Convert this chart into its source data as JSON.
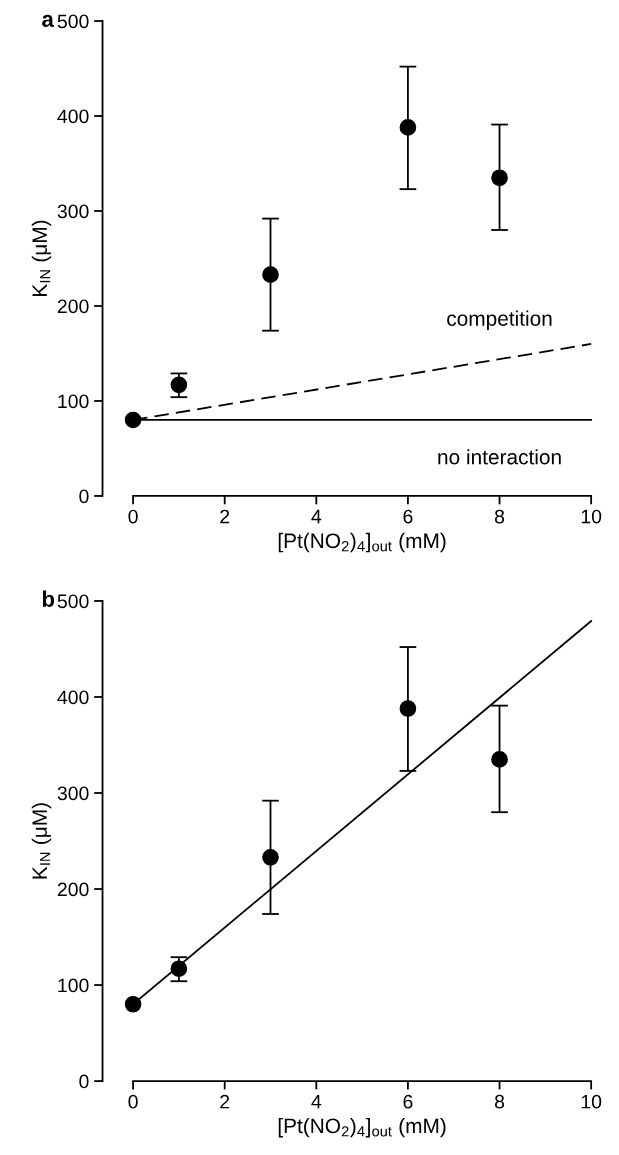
{
  "chart_data": [
    {
      "type": "scatter",
      "title": "a",
      "xlabel": "[Pt(NO$_{2}$)$_{4}$]$_{out}$ (mM)",
      "ylabel": "K$_{IN}$ (μM)",
      "xlim": [
        0,
        10
      ],
      "ylim": [
        0,
        500
      ],
      "xticks": [
        0,
        2,
        4,
        6,
        8,
        10
      ],
      "yticks": [
        0,
        100,
        200,
        300,
        400,
        500
      ],
      "grid": false,
      "legend": false,
      "series": [
        {
          "type": "line",
          "x": [
            0,
            10
          ],
          "values": [
            80,
            160
          ],
          "color": "#000000",
          "line_style": "dashed",
          "marker": "none"
        },
        {
          "type": "line",
          "x": [
            0,
            10
          ],
          "values": [
            80,
            80
          ],
          "color": "#000000",
          "line_style": "solid",
          "marker": "none"
        },
        {
          "x": [
            0,
            1,
            3,
            6,
            8
          ],
          "values": [
            80,
            117,
            233,
            388,
            335
          ],
          "errors": [
            null,
            [
              104,
              129
            ],
            [
              174,
              292
            ],
            [
              323,
              452
            ],
            [
              280,
              391
            ]
          ],
          "color": "#000000",
          "marker": "circle"
        }
      ],
      "annotations": [
        {
          "text": "competition",
          "x": 8,
          "y": 144
        },
        {
          "text": "no interaction",
          "x": 8,
          "y": 80
        }
      ]
    },
    {
      "type": "scatter",
      "title": "b",
      "xlabel": "[Pt(NO$_{2}$)$_{4}$]$_{out}$ (mM)",
      "ylabel": "K$_{IN}$ (μM)",
      "xlim": [
        0,
        10
      ],
      "ylim": [
        0,
        500
      ],
      "xticks": [
        0,
        2,
        4,
        6,
        8,
        10
      ],
      "yticks": [
        0,
        100,
        200,
        300,
        400,
        500
      ],
      "grid": false,
      "legend": false,
      "series": [
        {
          "type": "line",
          "x": [
            0,
            10
          ],
          "values": [
            80,
            479
          ],
          "color": "#000000",
          "line_style": "solid",
          "marker": "none"
        },
        {
          "x": [
            0,
            1,
            3,
            6,
            8
          ],
          "values": [
            80,
            117,
            233,
            388,
            335
          ],
          "errors": [
            null,
            [
              104,
              129
            ],
            [
              174,
              292
            ],
            [
              323,
              452
            ],
            [
              280,
              391
            ]
          ],
          "color": "#000000",
          "marker": "circle"
        }
      ]
    }
  ]
}
